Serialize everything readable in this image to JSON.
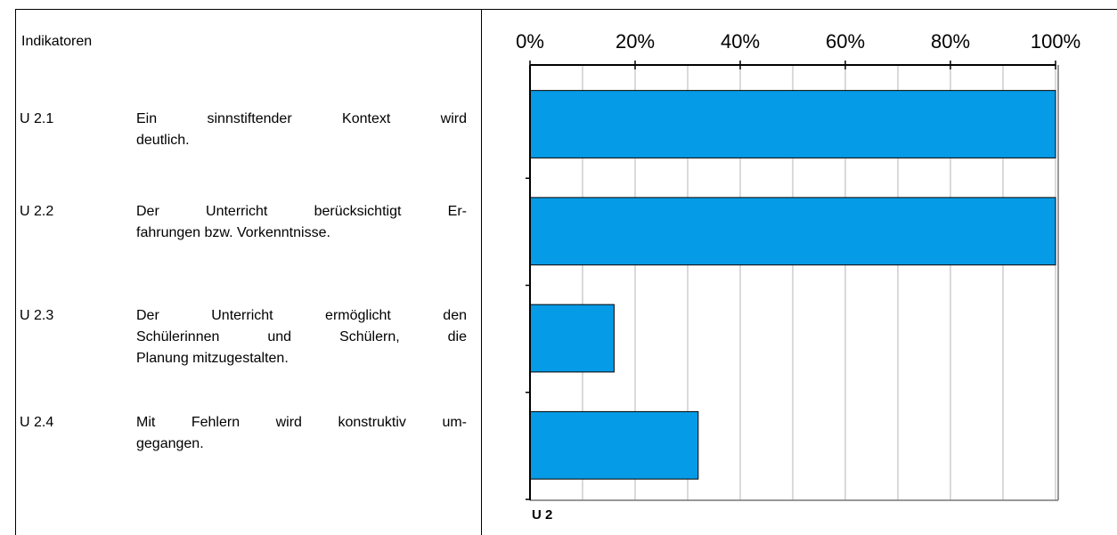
{
  "indicators_header": "Indikatoren",
  "rows": [
    {
      "code": "U 2.1",
      "lines": [
        "Ein sinnstiftender Kontext wird",
        "deutlich."
      ]
    },
    {
      "code": "U 2.2",
      "lines": [
        "Der Unterricht berücksichtigt Er-",
        "fahrungen bzw. Vorkenntnisse."
      ]
    },
    {
      "code": "U 2.3",
      "lines": [
        "Der Unterricht ermöglicht den",
        "Schülerinnen und Schülern, die",
        "Planung mitzugestalten."
      ]
    },
    {
      "code": "U 2.4",
      "lines": [
        "Mit Fehlern wird konstruktiv um-",
        "gegangen."
      ]
    }
  ],
  "chart_data": {
    "type": "bar",
    "orientation": "horizontal",
    "values": [
      100,
      100,
      16,
      32
    ],
    "color": "#069be6",
    "xlim": [
      0,
      100
    ],
    "xticks": [
      {
        "value": 0,
        "label": "0%"
      },
      {
        "value": 20,
        "label": "20%"
      },
      {
        "value": 40,
        "label": "40%"
      },
      {
        "value": 60,
        "label": "60%"
      },
      {
        "value": 80,
        "label": "80%"
      },
      {
        "value": 100,
        "label": "100%"
      }
    ],
    "xgrid": [
      10,
      20,
      30,
      40,
      50,
      60,
      70,
      80,
      90,
      100
    ],
    "grid": true,
    "group_label": "U 2"
  }
}
